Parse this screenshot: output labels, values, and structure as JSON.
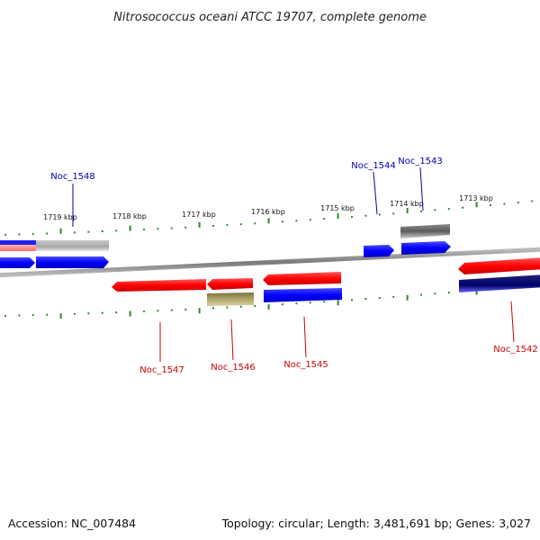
{
  "title": "Nitrosococcus oceani ATCC 19707, complete genome",
  "footer": {
    "accession": "Accession: NC_007484",
    "summary": "Topology: circular; Length: 3,481,691 bp; Genes: 3,027"
  },
  "colors": {
    "forward_strand": "#0000ff",
    "reverse_strand": "#ff0000",
    "other_feature": "#888888",
    "tick": "#2a8a2a",
    "backbone": "#888888"
  },
  "scale_labels": [
    "1719 kbp",
    "1718 kbp",
    "1717 kbp",
    "1716 kbp",
    "1715 kbp",
    "1714 kbp",
    "1713 kbp"
  ],
  "gene_labels": {
    "Noc_1548": "Noc_1548",
    "Noc_1547": "Noc_1547",
    "Noc_1546": "Noc_1546",
    "Noc_1545": "Noc_1545",
    "Noc_1544": "Noc_1544",
    "Noc_1543": "Noc_1543",
    "Noc_1542": "Noc_1542"
  }
}
